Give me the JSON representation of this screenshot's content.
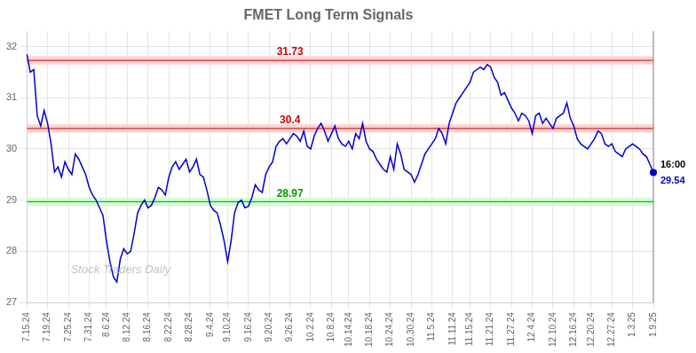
{
  "chart_data": {
    "type": "line",
    "title": "FMET Long Term Signals",
    "color": "#0000cc",
    "grid": true,
    "ylim": [
      27.0,
      32.3
    ],
    "yticks": [
      27,
      28,
      29,
      30,
      31,
      32
    ],
    "categories": [
      "7.15.24",
      null,
      null,
      null,
      null,
      null,
      "7.19.24",
      null,
      null,
      null,
      null,
      null,
      "7.25.24",
      null,
      null,
      null,
      null,
      null,
      "7.31.24",
      null,
      null,
      null,
      null,
      "8.6.24",
      null,
      null,
      null,
      null,
      null,
      "8.12.24",
      null,
      null,
      null,
      null,
      null,
      "8.16.24",
      null,
      null,
      null,
      null,
      null,
      "8.22.24",
      null,
      null,
      null,
      null,
      null,
      "8.28.24",
      null,
      null,
      null,
      null,
      null,
      "9.4.24",
      null,
      null,
      null,
      null,
      "9.10.24",
      null,
      null,
      null,
      null,
      null,
      "9.16.24",
      null,
      null,
      null,
      null,
      null,
      "9.20.24",
      null,
      null,
      null,
      null,
      null,
      "9.26.24",
      null,
      null,
      null,
      null,
      null,
      "10.2.24",
      null,
      null,
      null,
      null,
      null,
      "10.8.24",
      null,
      null,
      null,
      null,
      "10.14.24",
      null,
      null,
      null,
      null,
      null,
      "10.18.24",
      null,
      null,
      null,
      null,
      null,
      "10.24.24",
      null,
      null,
      null,
      null,
      null,
      "10.30.24",
      null,
      null,
      null,
      null,
      null,
      "11.5.24",
      null,
      null,
      null,
      null,
      null,
      "11.11.24",
      null,
      null,
      null,
      null,
      "11.15.24",
      null,
      null,
      null,
      null,
      null,
      "11.21.24",
      null,
      null,
      null,
      null,
      null,
      "11.27.24",
      null,
      null,
      null,
      null,
      null,
      "12.4.24",
      null,
      null,
      null,
      null,
      null,
      "12.10.24",
      null,
      null,
      null,
      null,
      null,
      "12.16.24",
      null,
      null,
      null,
      null,
      "12.20.24",
      null,
      null,
      null,
      null,
      null,
      "12.27.24",
      null,
      null,
      null,
      null,
      null,
      "1.3.25",
      null,
      null,
      null,
      null,
      null,
      "1.9.25"
    ],
    "values": [
      31.85,
      31.5,
      31.55,
      30.65,
      30.45,
      30.75,
      30.5,
      30.1,
      29.55,
      29.65,
      29.45,
      29.75,
      29.6,
      29.5,
      29.9,
      29.8,
      29.65,
      29.5,
      29.25,
      29.1,
      29.0,
      28.85,
      28.7,
      28.2,
      27.8,
      27.5,
      27.4,
      27.85,
      28.05,
      27.95,
      28.0,
      28.35,
      28.75,
      28.9,
      29.0,
      28.85,
      28.9,
      29.05,
      29.25,
      29.2,
      29.1,
      29.45,
      29.65,
      29.75,
      29.6,
      29.7,
      29.8,
      29.55,
      29.65,
      29.8,
      29.5,
      29.45,
      29.2,
      28.9,
      28.8,
      28.75,
      28.5,
      28.2,
      27.8,
      28.2,
      28.75,
      28.95,
      29.0,
      28.85,
      28.88,
      29.05,
      29.3,
      29.2,
      29.15,
      29.5,
      29.65,
      29.75,
      30.05,
      30.15,
      30.2,
      30.1,
      30.2,
      30.3,
      30.25,
      30.15,
      30.35,
      30.05,
      30.0,
      30.25,
      30.4,
      30.5,
      30.35,
      30.15,
      30.3,
      30.45,
      30.2,
      30.1,
      30.05,
      30.15,
      30.0,
      30.3,
      30.2,
      30.5,
      30.15,
      30.0,
      29.95,
      29.8,
      29.7,
      29.6,
      29.55,
      29.85,
      29.6,
      30.1,
      29.9,
      29.6,
      29.55,
      29.5,
      29.35,
      29.5,
      29.7,
      29.9,
      30.0,
      30.1,
      30.2,
      30.4,
      30.3,
      30.1,
      30.5,
      30.7,
      30.9,
      31.0,
      31.1,
      31.2,
      31.3,
      31.5,
      31.55,
      31.6,
      31.55,
      31.65,
      31.6,
      31.4,
      31.3,
      31.05,
      31.1,
      30.95,
      30.8,
      30.7,
      30.55,
      30.7,
      30.65,
      30.55,
      30.3,
      30.65,
      30.7,
      30.5,
      30.6,
      30.5,
      30.4,
      30.6,
      30.65,
      30.7,
      30.9,
      30.6,
      30.45,
      30.2,
      30.1,
      30.05,
      30.0,
      30.1,
      30.2,
      30.35,
      30.3,
      30.1,
      30.05,
      30.1,
      29.95,
      29.9,
      29.85,
      30.0,
      30.05,
      30.1,
      30.05,
      30.0,
      29.9,
      29.85,
      29.7,
      29.54
    ],
    "annotations": [
      {
        "type": "hline",
        "value": 31.73,
        "label": "31.73",
        "color": "#cc0000",
        "band_color": "#ffcccc"
      },
      {
        "type": "hline",
        "value": 30.4,
        "label": "30.4",
        "color": "#cc0000",
        "band_color": "#ffcccc"
      },
      {
        "type": "hline",
        "value": 28.97,
        "label": "28.97",
        "color": "#009900",
        "band_color": "#ccffcc"
      },
      {
        "type": "last_point",
        "value": 29.54,
        "label": "16:00",
        "value_label": "29.54",
        "color": "#0000cc",
        "label_color": "#000000"
      },
      {
        "type": "watermark",
        "text": "Stock Traders Daily",
        "color": "#bbbbbb"
      }
    ]
  }
}
